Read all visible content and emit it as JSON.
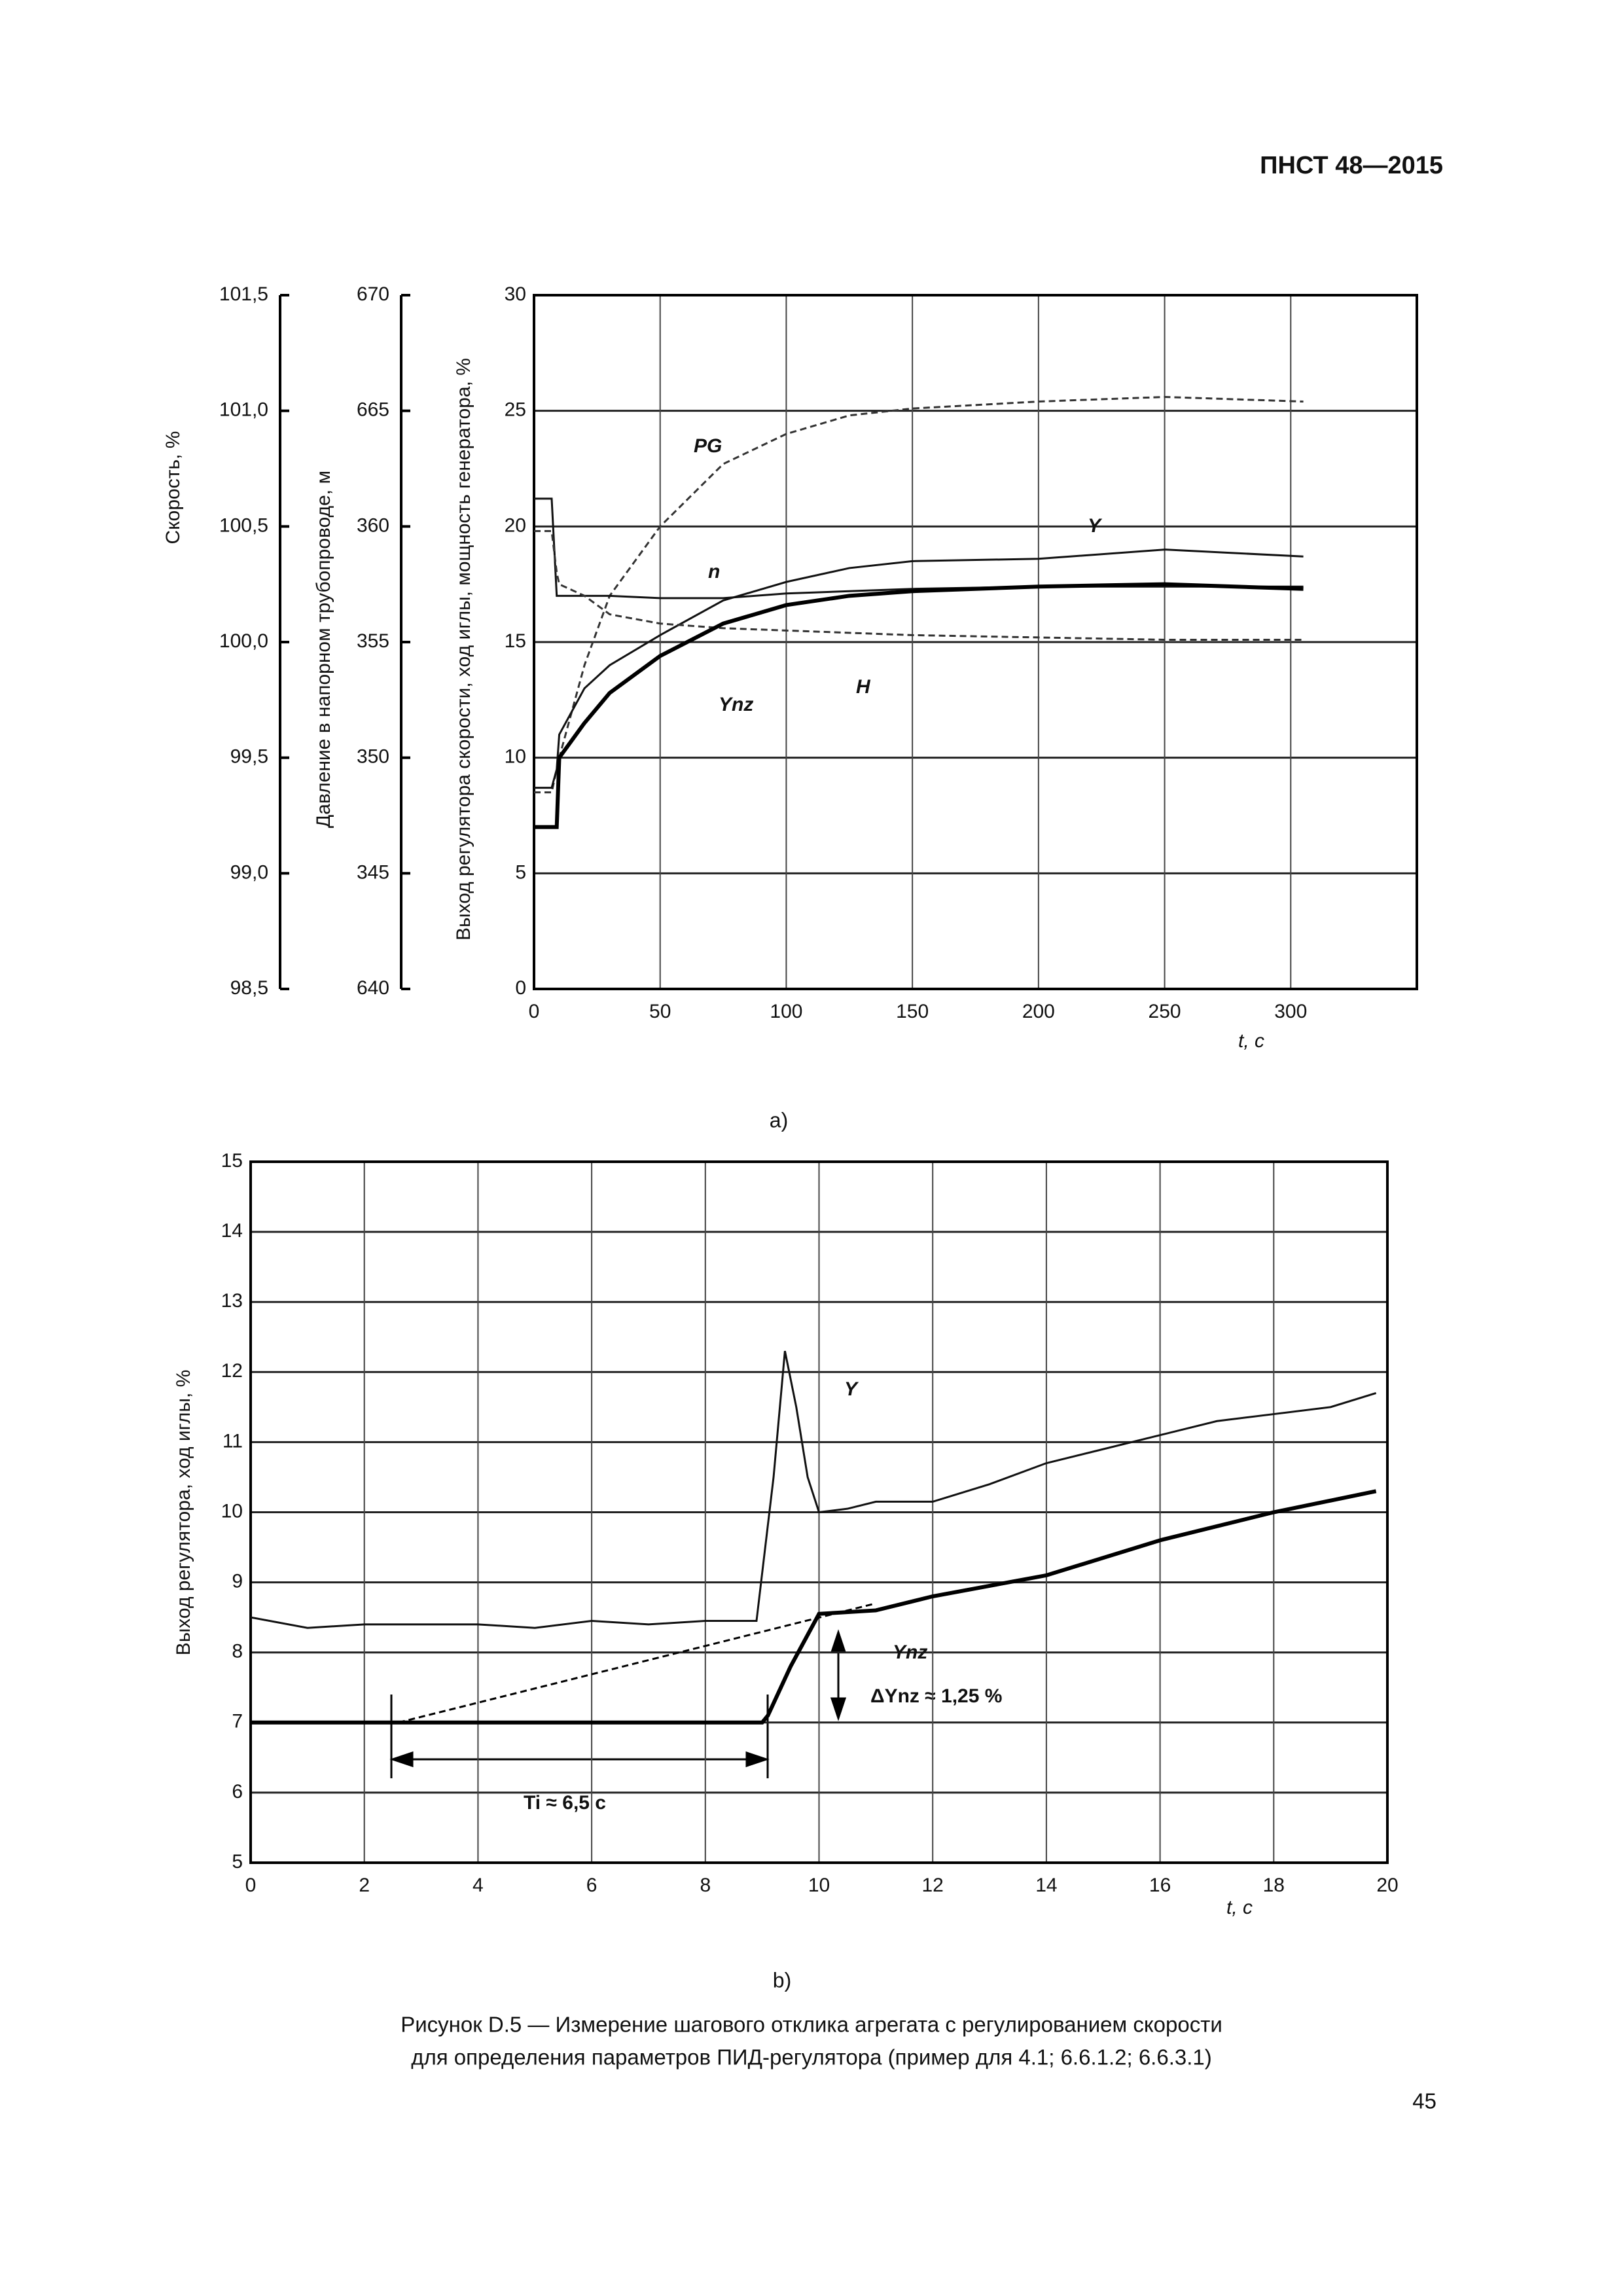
{
  "header": "ПНСТ 48—2015",
  "chart_data": [
    {
      "type": "line",
      "sublabel": "а)",
      "x_label": "t, с",
      "y_label": "Выход регулятора скорости, ход иглы, мощность генератора, %",
      "y2_label": "Скорость, %",
      "y3_label": "Давление в напорном трубопроводе, м",
      "xlim": [
        0,
        350
      ],
      "xticks": [
        0,
        50,
        100,
        150,
        200,
        250,
        300
      ],
      "ylim": [
        0,
        30
      ],
      "yticks": [
        0,
        5,
        10,
        15,
        20,
        25,
        30
      ],
      "y2lim": [
        98.5,
        101.5
      ],
      "y2ticks": [
        {
          "value": 98.5,
          "label": "98,5"
        },
        {
          "value": 99,
          "label": "99,0"
        },
        {
          "value": 99.5,
          "label": "99,5"
        },
        {
          "value": 100,
          "label": "100,0"
        },
        {
          "value": 100.5,
          "label": "100,5"
        },
        {
          "value": 101,
          "label": "101,0"
        },
        {
          "value": 101.5,
          "label": "101,5"
        }
      ],
      "y3lim": [
        640,
        670
      ],
      "y3ticks": [
        640,
        {
          "value": 645,
          "label": "345"
        },
        {
          "value": 650,
          "label": "350"
        },
        {
          "value": 655,
          "label": "355"
        },
        {
          "value": 660,
          "label": "360"
        },
        665,
        670
      ],
      "grid": true,
      "x": [
        0,
        7,
        9,
        10,
        20,
        30,
        50,
        75,
        100,
        125,
        150,
        200,
        250,
        305
      ],
      "series": [
        {
          "name": "PG",
          "color": "#333333",
          "style": "dashed",
          "values": [
            8.5,
            8.5,
            9.5,
            10,
            14,
            17,
            20,
            22.7,
            24,
            24.8,
            25.1,
            25.4,
            25.6,
            25.4
          ]
        },
        {
          "name": "Y",
          "color": "#111111",
          "style": "solid",
          "values": [
            8.7,
            8.7,
            9.5,
            11,
            13,
            14,
            15.3,
            16.8,
            17.6,
            18.2,
            18.5,
            18.6,
            19,
            18.7
          ]
        },
        {
          "name": "n",
          "color": "#111111",
          "style": "solid",
          "axis": "y2",
          "values": [
            100.62,
            100.62,
            100.2,
            100.2,
            100.2,
            100.2,
            100.19,
            100.19,
            100.21,
            100.22,
            100.23,
            100.24,
            100.24,
            100.24
          ]
        },
        {
          "name": "H",
          "color": "#333333",
          "style": "dashed",
          "axis": "y3",
          "values": [
            659.8,
            659.8,
            658,
            657.5,
            657,
            656.2,
            655.8,
            655.6,
            655.5,
            655.4,
            655.3,
            655.2,
            655.1,
            655.1
          ]
        },
        {
          "name": "Ynz",
          "color": "#000000",
          "style": "bold",
          "values": [
            7,
            7,
            7,
            10,
            11.5,
            12.8,
            14.4,
            15.8,
            16.6,
            17,
            17.2,
            17.4,
            17.5,
            17.3
          ]
        }
      ]
    },
    {
      "type": "line",
      "sublabel": "b)",
      "x_label": "t, с",
      "y_label": "Выход регулятора, ход иглы, %",
      "xlim": [
        0,
        20
      ],
      "xticks": [
        0,
        2,
        4,
        6,
        8,
        10,
        12,
        14,
        16,
        18,
        20
      ],
      "ylim": [
        5,
        15
      ],
      "yticks": [
        5,
        6,
        7,
        8,
        9,
        10,
        11,
        12,
        13,
        14,
        15
      ],
      "grid": true,
      "series": [
        {
          "name": "Y",
          "color": "#111111",
          "style": "solid",
          "x": [
            0,
            1,
            2,
            3,
            4,
            5,
            6,
            7,
            8,
            8.9,
            9.2,
            9.4,
            9.6,
            9.8,
            10,
            10.5,
            11,
            12,
            13,
            14,
            15,
            16,
            17,
            18,
            19,
            19.8
          ],
          "values": [
            8.5,
            8.35,
            8.4,
            8.4,
            8.4,
            8.35,
            8.45,
            8.4,
            8.45,
            8.45,
            10.5,
            12.3,
            11.5,
            10.5,
            10,
            10.05,
            10.15,
            10.15,
            10.4,
            10.7,
            10.9,
            11.1,
            11.3,
            11.4,
            11.5,
            11.7
          ]
        },
        {
          "name": "Ynz",
          "color": "#000000",
          "style": "bold",
          "x": [
            0,
            9,
            9.1,
            9.5,
            10,
            11,
            12,
            14,
            16,
            18,
            19.8
          ],
          "values": [
            7,
            7,
            7.1,
            7.8,
            8.55,
            8.6,
            8.8,
            9.1,
            9.6,
            10,
            10.3
          ]
        }
      ],
      "dashed_line": {
        "x": [
          2.6,
          11
        ],
        "values": [
          7,
          8.7
        ]
      },
      "annotations": [
        "ΔYnz ≈ 1,25 %",
        "Ti ≈ 6,5 с"
      ]
    }
  ],
  "caption": [
    "Рисунок D.5 — Измерение шагового отклика агрегата с регулированием скорости",
    "для определения параметров ПИД-регулятора (пример для 4.1; 6.6.1.2; 6.6.3.1)"
  ],
  "page_number": "45"
}
